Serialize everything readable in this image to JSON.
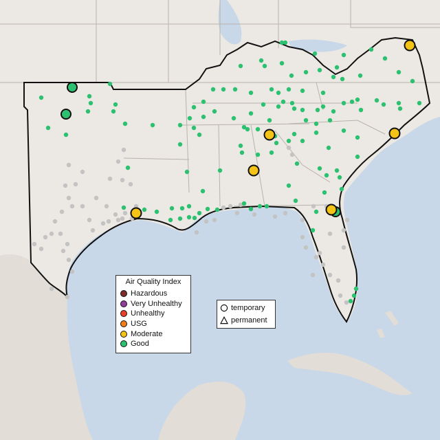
{
  "map": {
    "colors": {
      "water": "#c8d8e8",
      "land": "#ece8e3",
      "land_south": "#e2ddd6",
      "state_border": "#b8b2ab",
      "region_border": "#111111",
      "monitor_gray": "#c3c3c3"
    }
  },
  "legend": {
    "title": "Air Quality Index",
    "items": [
      {
        "label": "Hazardous",
        "color": "#7e2b2b"
      },
      {
        "label": "Very Unhealthy",
        "color": "#8f3f97"
      },
      {
        "label": "Unhealthy",
        "color": "#e8402a"
      },
      {
        "label": "USG",
        "color": "#ef7d1a"
      },
      {
        "label": "Moderate",
        "color": "#f3c317"
      },
      {
        "label": "Good",
        "color": "#2cc170"
      }
    ]
  },
  "type_legend": {
    "items": [
      {
        "label": "temporary",
        "shape": "circle-icon"
      },
      {
        "label": "permanent",
        "shape": "triangle-icon"
      }
    ]
  }
}
